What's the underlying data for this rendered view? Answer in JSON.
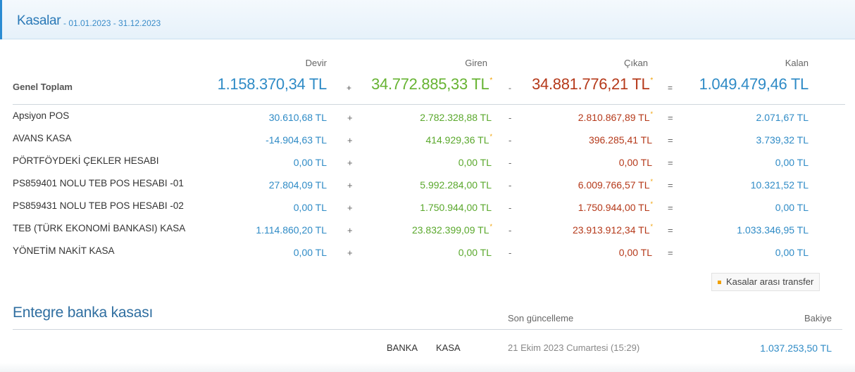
{
  "header": {
    "title": "Kasalar",
    "date_range": "- 01.01.2023 - 31.12.2023"
  },
  "columns": {
    "devir": "Devir",
    "giren": "Giren",
    "cikan": "Çıkan",
    "kalan": "Kalan"
  },
  "operators": {
    "plus": "+",
    "minus": "-",
    "equals": "="
  },
  "grand_total": {
    "label": "Genel Toplam",
    "devir": "1.158.370,34 TL",
    "giren": "34.772.885,33 TL",
    "giren_flag": "*",
    "cikan": "34.881.776,21 TL",
    "cikan_flag": "*",
    "kalan": "1.049.479,46 TL"
  },
  "rows": [
    {
      "name": "Apsiyon POS",
      "devir": "30.610,68 TL",
      "giren": "2.782.328,88 TL",
      "giren_flag": "",
      "cikan": "2.810.867,89 TL",
      "cikan_flag": "*",
      "kalan": "2.071,67 TL"
    },
    {
      "name": "AVANS KASA",
      "devir": "-14.904,63 TL",
      "giren": "414.929,36 TL",
      "giren_flag": "*",
      "cikan": "396.285,41 TL",
      "cikan_flag": "",
      "kalan": "3.739,32 TL"
    },
    {
      "name": "PÖRTFÖYDEKİ ÇEKLER HESABI",
      "devir": "0,00 TL",
      "giren": "0,00 TL",
      "giren_flag": "",
      "cikan": "0,00 TL",
      "cikan_flag": "",
      "kalan": "0,00 TL"
    },
    {
      "name": "PS859401 NOLU TEB POS HESABI -01",
      "devir": "27.804,09 TL",
      "giren": "5.992.284,00 TL",
      "giren_flag": "",
      "cikan": "6.009.766,57 TL",
      "cikan_flag": "*",
      "kalan": "10.321,52 TL"
    },
    {
      "name": "PS859431 NOLU TEB POS HESABI -02",
      "devir": "0,00 TL",
      "giren": "1.750.944,00 TL",
      "giren_flag": "",
      "cikan": "1.750.944,00 TL",
      "cikan_flag": "*",
      "kalan": "0,00 TL"
    },
    {
      "name": "TEB (TÜRK EKONOMİ BANKASI) KASA",
      "devir": "1.114.860,20 TL",
      "giren": "23.832.399,09 TL",
      "giren_flag": "*",
      "cikan": "23.913.912,34 TL",
      "cikan_flag": "*",
      "kalan": "1.033.346,95 TL"
    },
    {
      "name": "YÖNETİM NAKİT KASA",
      "devir": "0,00 TL",
      "giren": "0,00 TL",
      "giren_flag": "",
      "cikan": "0,00 TL",
      "cikan_flag": "",
      "kalan": "0,00 TL"
    }
  ],
  "transfer_button": {
    "label": "Kasalar arası transfer"
  },
  "integrated": {
    "title": "Entegre banka kasası",
    "col_updated": "Son güncelleme",
    "col_balance": "Bakiye",
    "row": {
      "type": "BANKA",
      "name": "KASA",
      "updated": "21 Ekim 2023 Cumartesi (15:29)",
      "balance": "1.037.253,50 TL"
    }
  },
  "colors": {
    "accent_blue": "#2f8bc6",
    "green": "#5aa82c",
    "red": "#b5391a",
    "flag_orange": "#f0a000"
  }
}
